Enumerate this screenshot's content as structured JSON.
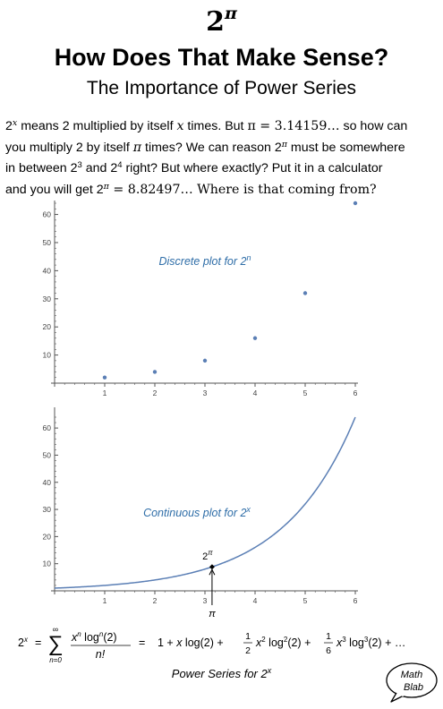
{
  "header": {
    "title_base": "2",
    "title_exp": "π",
    "question": "How Does That Make Sense?",
    "subtitle": "The Importance of Power Series"
  },
  "intro": {
    "l1_a": "2",
    "l1_sup": "x",
    "l1_b": " means 2 multiplied by itself ",
    "l1_x": "x",
    "l1_c": " times. But ",
    "l1_pi": "π = 3.14159…",
    "l1_d": "  so how can",
    "l2_a": "you multiply 2 by itself ",
    "l2_pi": "π",
    "l2_b": " times? We can reason 2",
    "l2_sup": "π",
    "l2_c": " must be somewhere",
    "l3_a": "in between 2",
    "l3_sup1": "3",
    "l3_b": " and 2",
    "l3_sup2": "4",
    "l3_c": " right? But where exactly? Put it in a calculator",
    "l4_a": "and you will get 2",
    "l4_sup": "π",
    "l4_b": " = 8.82497… Where is that coming from?"
  },
  "chart_data": [
    {
      "type": "scatter",
      "title": "",
      "annotation": "Discrete plot for 2",
      "annotation_exp": "n",
      "x": [
        1,
        2,
        3,
        4,
        5,
        6
      ],
      "y": [
        2,
        4,
        8,
        16,
        32,
        64
      ],
      "xlim": [
        0,
        6
      ],
      "ylim": [
        0,
        64
      ],
      "xticks": [
        "1",
        "2",
        "3",
        "4",
        "5",
        "6"
      ],
      "yticks": [
        "10",
        "20",
        "30",
        "40",
        "50",
        "60"
      ],
      "color": "#5b7fb5"
    },
    {
      "type": "line",
      "title": "",
      "annotation": "Continuous plot for  2",
      "annotation_exp": "x",
      "function": "2^x",
      "xlim": [
        0,
        6
      ],
      "ylim": [
        0,
        64
      ],
      "xticks": [
        "1",
        "2",
        "3",
        "4",
        "5",
        "6"
      ],
      "yticks": [
        "10",
        "20",
        "30",
        "40",
        "50",
        "60"
      ],
      "marked_point": {
        "x": 3.14159,
        "y": 8.82497,
        "label_base": "2",
        "label_exp": "π",
        "axis_label": "π"
      },
      "color": "#5b7fb5"
    }
  ],
  "formula": {
    "lhs_base": "2",
    "lhs_exp": "x",
    "sum_upper": "∞",
    "sum_lower": "n=0",
    "frac_num": "x",
    "frac_num_exp1": "n",
    "frac_num_log": " log",
    "frac_num_exp2": "n",
    "frac_num_arg": "(2)",
    "frac_den": "n!",
    "eq2": "=",
    "t1": "1 + ",
    "t2_x": "x",
    "t2_log": " log(2) + ",
    "t3_num": "1",
    "t3_den": "2",
    "t3_x": "x",
    "t3_xexp": "2",
    "t3_log": " log",
    "t3_logexp": "2",
    "t3_arg": "(2) + ",
    "t4_num": "1",
    "t4_den": "6",
    "t4_x": "x",
    "t4_xexp": "3",
    "t4_log": " log",
    "t4_logexp": "3",
    "t4_arg": "(2) + …"
  },
  "caption": {
    "text": "Power Series for 2",
    "exp": "x"
  },
  "logo": {
    "line1": "Math",
    "line2": "Blab"
  }
}
